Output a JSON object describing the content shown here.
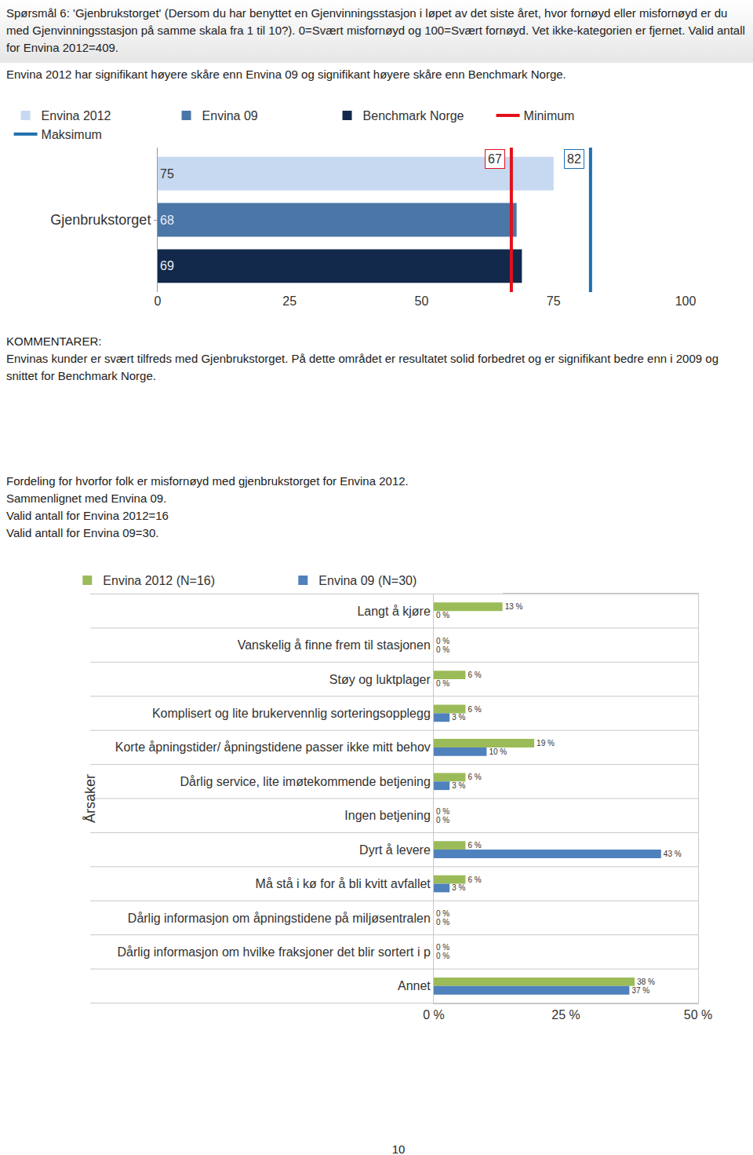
{
  "header": {
    "question": "Spørsmål 6: 'Gjenbrukstorget' (Dersom du har benyttet en Gjenvinningsstasjon i løpet av det siste året, hvor fornøyd eller misfornøyd er du med Gjenvinningsstasjon på samme skala fra 1 til 10?). 0=Svært misfornøyd og 100=Svært fornøyd. Vet ikke-kategorien er fjernet. Valid antall for Envina 2012=409.",
    "significance": "Envina 2012 har signifikant høyere skåre enn Envina 09 og signifikant høyere skåre enn Benchmark Norge."
  },
  "chart_data": [
    {
      "type": "bar",
      "orientation": "horizontal",
      "categories": [
        "Gjenbrukstorget"
      ],
      "series": [
        {
          "name": "Envina 2012",
          "color": "#c6d9f1",
          "values": [
            75
          ]
        },
        {
          "name": "Envina 09",
          "color": "#4a76a8",
          "values": [
            68
          ]
        },
        {
          "name": "Benchmark Norge",
          "color": "#13294b",
          "values": [
            69
          ]
        },
        {
          "name": "Minimum",
          "type": "line",
          "color": "#e3101a",
          "values": [
            67
          ]
        },
        {
          "name": "Maksimum",
          "type": "line",
          "color": "#1f6fad",
          "values": [
            82
          ]
        }
      ],
      "xlim": [
        0,
        100
      ],
      "xticks": [
        0,
        25,
        50,
        75,
        100
      ],
      "grid": false,
      "legend": "top",
      "data_labels": true
    },
    {
      "type": "bar",
      "orientation": "horizontal",
      "y_label": "Årsaker",
      "categories": [
        "Langt å kjøre",
        "Vanskelig å finne frem til stasjonen",
        "Støy og luktplager",
        "Komplisert og lite brukervennlig sorteringsopplegg",
        "Korte åpningstider/ åpningstidene passer ikke mitt behov",
        "Dårlig service, lite imøtekommende betjening",
        "Ingen betjening",
        "Dyrt å levere",
        "Må stå i kø for å bli kvitt avfallet",
        "Dårlig informasjon om åpningstidene på miljøsentralen",
        "Dårlig informasjon om hvilke fraksjoner det blir sortert i p",
        "Annet"
      ],
      "series": [
        {
          "name": "Envina 2012 (N=16)",
          "color": "#9bbb59",
          "values": [
            13,
            0,
            6,
            6,
            19,
            6,
            0,
            6,
            6,
            0,
            0,
            38
          ],
          "value_labels": [
            "13 %",
            "0 %",
            "6 %",
            "6 %",
            "19 %",
            "6 %",
            "0 %",
            "6 %",
            "6 %",
            "0 %",
            "0 %",
            "38 %"
          ]
        },
        {
          "name": "Envina 09 (N=30)",
          "color": "#4f81bd",
          "values": [
            0,
            0,
            0,
            3,
            10,
            3,
            0,
            43,
            3,
            0,
            0,
            37
          ],
          "value_labels": [
            "0 %",
            "0 %",
            "0 %",
            "3 %",
            "10 %",
            "3 %",
            "0 %",
            "43 %",
            "3 %",
            "0 %",
            "0 %",
            "37 %"
          ]
        }
      ],
      "xlim": [
        0,
        50
      ],
      "xticks": [
        {
          "value": 0,
          "label": "0 %"
        },
        {
          "value": 25,
          "label": "25 %"
        },
        {
          "value": 50,
          "label": "50 %"
        }
      ],
      "grid": true,
      "legend": "top",
      "data_labels": true
    }
  ],
  "comments": {
    "title": "KOMMENTARER:",
    "text": "Envinas kunder er svært tilfreds med Gjenbrukstorget. På dette området er resultatet solid forbedret og er signifikant bedre enn i 2009 og snittet for Benchmark Norge."
  },
  "section2": {
    "lines": [
      "Fordeling for hvorfor folk er misfornøyd med gjenbrukstorget for Envina 2012.",
      "Sammenlignet med Envina 09.",
      "Valid antall for Envina 2012=16",
      "Valid antall for Envina 09=30."
    ]
  },
  "page_number": 10
}
